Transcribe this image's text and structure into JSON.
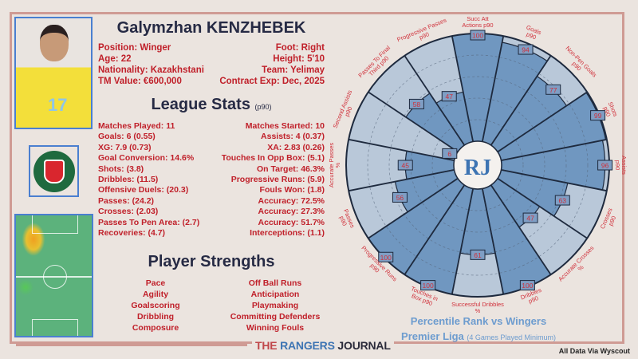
{
  "player": {
    "name": "Galymzhan KENZHEBEK",
    "shirt_number": "17",
    "left_info": [
      "Position: Winger",
      "Age: 22",
      "Nationality: Kazakhstani",
      "TM Value: €600,000"
    ],
    "right_info": [
      "Foot: Right",
      "Height: 5'10",
      "Team: Yelimay",
      "Contract Exp: Dec, 2025"
    ]
  },
  "league_stats": {
    "title": "League Stats",
    "suffix": "(p90)",
    "left": [
      "Matches Played: 11",
      "Goals: 6 (0.55)",
      "XG: 7.9 (0.73)",
      "Goal Conversion: 14.6%",
      "Shots: (3.8)",
      "Dribbles: (11.5)",
      "Offensive Duels: (20.3)",
      "Passes: (24.2)",
      "Crosses: (2.03)",
      "Passes To Pen Area: (2.7)",
      "Recoveries: (4.7)"
    ],
    "right": [
      "Matches Started: 10",
      "Assists: 4 (0.37)",
      "XA: 2.83 (0.26)",
      "Touches In Opp Box: (5.1)",
      "On Target: 46.3%",
      "Progressive Runs: (5.9)",
      "Fouls Won: (1.8)",
      "Accuracy: 72.5%",
      "Accuracy: 27.3%",
      "Accuracy: 51.7%",
      "Interceptions: (1.1)"
    ]
  },
  "strengths": {
    "title": "Player Strengths",
    "left": [
      "Pace",
      "Agility",
      "Goalscoring",
      "Dribbling",
      "Composure"
    ],
    "right": [
      "Off Ball Runs",
      "Anticipation",
      "Playmaking",
      "Committing Defenders",
      "Winning Fouls"
    ]
  },
  "footer": {
    "brand_1": "THE",
    "brand_2": "RANGERS",
    "brand_3": "JOURNAL",
    "credit": "All Data Via Wyscout"
  },
  "chart_data": {
    "type": "pie",
    "subtype": "polar-percentile",
    "title": "Percentile Rank vs Wingers",
    "subtitle": "Premier Liga",
    "subtitle_note": "(4 Games Played Minimum)",
    "center_logo": "RJ",
    "range": [
      0,
      100
    ],
    "categories": [
      "Succ Att Actions p90",
      "Goals p90",
      "Non-Pen Goals p90",
      "Shots p90",
      "Assists p90",
      "Crosses p90",
      "Accurate Crosses %",
      "Dribbles p90",
      "Successful Dribbles %",
      "Touches in Box p90",
      "Progressive Runs p90",
      "Passes p90",
      "Accurate Passes %",
      "Second Assists p90",
      "Passes To Final Third p90",
      "Progressive Passes p90"
    ],
    "values": [
      100,
      94,
      77,
      99,
      96,
      63,
      47,
      100,
      61,
      100,
      100,
      56,
      45,
      6,
      58,
      47
    ],
    "colors": {
      "fill": "#7097c0",
      "background": "#b9c8d9",
      "edge": "#1e2a3e",
      "label": "#d0303a"
    }
  }
}
